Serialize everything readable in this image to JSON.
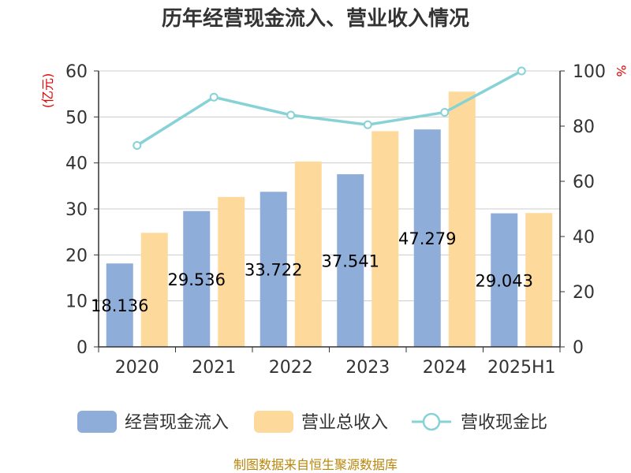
{
  "chart_data": {
    "type": "bar",
    "title": "历年经营现金流入、营业收入情况",
    "categories": [
      "2020",
      "2021",
      "2022",
      "2023",
      "2024",
      "2025H1"
    ],
    "series": [
      {
        "name": "经营现金流入",
        "kind": "bar",
        "axis": "left",
        "color": "#8eadd9",
        "values": [
          18.136,
          29.536,
          33.722,
          37.541,
          47.279,
          29.043
        ],
        "labels": [
          "18.136",
          "29.536",
          "33.722",
          "37.541",
          "47.279",
          "29.043"
        ]
      },
      {
        "name": "营业总收入",
        "kind": "bar",
        "axis": "left",
        "color": "#fdd99b",
        "values": [
          24.8,
          32.6,
          40.3,
          46.9,
          55.5,
          29.1
        ]
      },
      {
        "name": "营收现金比",
        "kind": "line",
        "axis": "right",
        "color": "#86d2d6",
        "values": [
          73,
          90.5,
          84,
          80.5,
          85,
          100
        ]
      }
    ],
    "left_axis": {
      "unit": "(亿元)",
      "min": 0,
      "max": 60,
      "ticks": [
        "0",
        "10",
        "20",
        "30",
        "40",
        "50",
        "60"
      ]
    },
    "right_axis": {
      "unit": "%",
      "min": 0,
      "max": 100,
      "ticks": [
        "0",
        "20",
        "40",
        "60",
        "80",
        "100"
      ]
    },
    "grid": true,
    "legend_position": "bottom",
    "source": "制图数据来自恒生聚源数据库"
  }
}
